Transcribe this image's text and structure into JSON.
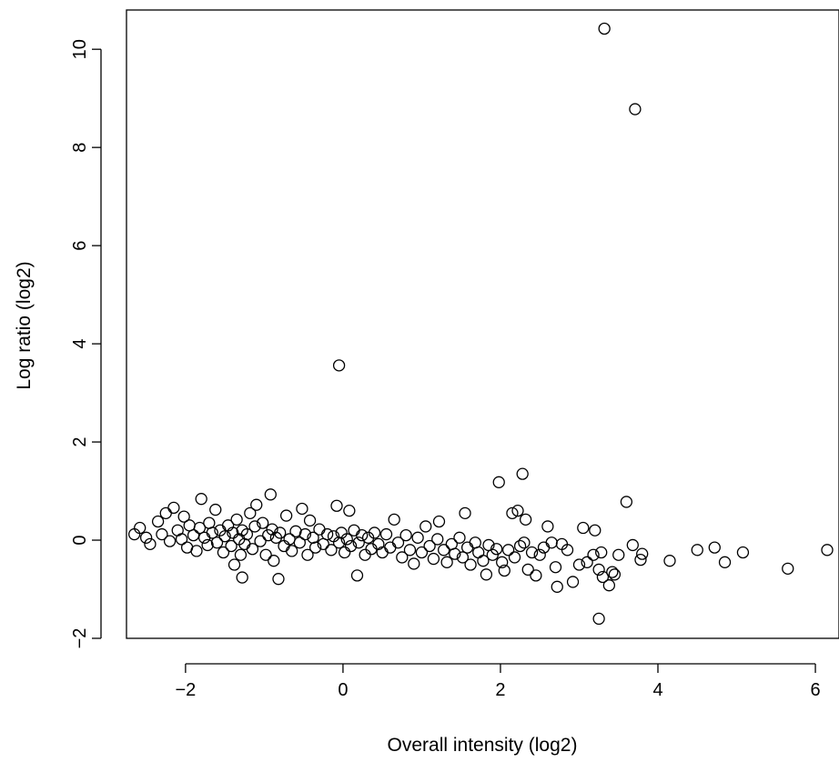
{
  "chart_data": {
    "type": "scatter",
    "title": "",
    "xlabel": "Overall intensity (log2)",
    "ylabel": "Log ratio (log2)",
    "xlim": [
      -2.75,
      6.3
    ],
    "ylim": [
      -2.0,
      10.8
    ],
    "x_ticks": [
      -2,
      0,
      2,
      4,
      6
    ],
    "y_ticks": [
      -2,
      0,
      2,
      4,
      6,
      8,
      10
    ],
    "x_tick_labels": [
      "−2",
      "0",
      "2",
      "4",
      "6"
    ],
    "y_tick_labels": [
      "−2",
      "0",
      "2",
      "4",
      "6",
      "8",
      "10"
    ],
    "grid": false,
    "marker": "open-circle",
    "marker_color": "#000000",
    "series": [
      {
        "points": [
          [
            3.32,
            10.42
          ],
          [
            3.71,
            8.78
          ],
          [
            -0.05,
            3.56
          ],
          [
            -2.65,
            0.12
          ],
          [
            -2.58,
            0.25
          ],
          [
            -2.5,
            0.05
          ],
          [
            -2.45,
            -0.08
          ],
          [
            -2.35,
            0.38
          ],
          [
            -2.3,
            0.12
          ],
          [
            -2.25,
            0.55
          ],
          [
            -2.2,
            -0.02
          ],
          [
            -2.15,
            0.66
          ],
          [
            -2.1,
            0.2
          ],
          [
            -2.05,
            0.02
          ],
          [
            -2.02,
            0.48
          ],
          [
            -1.98,
            -0.15
          ],
          [
            -1.95,
            0.3
          ],
          [
            -1.9,
            0.1
          ],
          [
            -1.86,
            -0.22
          ],
          [
            -1.82,
            0.25
          ],
          [
            -1.8,
            0.84
          ],
          [
            -1.76,
            0.05
          ],
          [
            -1.72,
            -0.1
          ],
          [
            -1.7,
            0.35
          ],
          [
            -1.66,
            0.15
          ],
          [
            -1.62,
            0.62
          ],
          [
            -1.6,
            -0.05
          ],
          [
            -1.56,
            0.2
          ],
          [
            -1.52,
            -0.25
          ],
          [
            -1.5,
            0.08
          ],
          [
            -1.46,
            0.3
          ],
          [
            -1.42,
            -0.12
          ],
          [
            -1.4,
            0.15
          ],
          [
            -1.38,
            -0.5
          ],
          [
            -1.35,
            0.42
          ],
          [
            -1.32,
            0.02
          ],
          [
            -1.3,
            -0.3
          ],
          [
            -1.28,
            0.2
          ],
          [
            -1.25,
            -0.08
          ],
          [
            -1.28,
            -0.76
          ],
          [
            -1.22,
            0.12
          ],
          [
            -1.18,
            0.55
          ],
          [
            -1.15,
            -0.18
          ],
          [
            -1.12,
            0.28
          ],
          [
            -1.1,
            0.72
          ],
          [
            -1.05,
            -0.02
          ],
          [
            -1.02,
            0.35
          ],
          [
            -0.98,
            -0.3
          ],
          [
            -0.95,
            0.1
          ],
          [
            -0.92,
            0.93
          ],
          [
            -0.9,
            0.22
          ],
          [
            -0.88,
            -0.42
          ],
          [
            -0.85,
            0.05
          ],
          [
            -0.82,
            -0.79
          ],
          [
            -0.8,
            0.15
          ],
          [
            -0.75,
            -0.12
          ],
          [
            -0.72,
            0.5
          ],
          [
            -0.68,
            0.02
          ],
          [
            -0.65,
            -0.22
          ],
          [
            -0.6,
            0.18
          ],
          [
            -0.55,
            -0.05
          ],
          [
            -0.52,
            0.64
          ],
          [
            -0.48,
            0.12
          ],
          [
            -0.45,
            -0.3
          ],
          [
            -0.42,
            0.4
          ],
          [
            -0.38,
            0.05
          ],
          [
            -0.35,
            -0.15
          ],
          [
            -0.3,
            0.22
          ],
          [
            -0.25,
            -0.08
          ],
          [
            -0.2,
            0.12
          ],
          [
            -0.15,
            -0.2
          ],
          [
            -0.12,
            0.08
          ],
          [
            -0.08,
            0.7
          ],
          [
            -0.05,
            -0.05
          ],
          [
            -0.02,
            0.15
          ],
          [
            0.02,
            -0.25
          ],
          [
            0.05,
            0.02
          ],
          [
            0.08,
            0.6
          ],
          [
            0.1,
            -0.12
          ],
          [
            0.14,
            0.2
          ],
          [
            0.18,
            -0.72
          ],
          [
            0.2,
            -0.05
          ],
          [
            0.24,
            0.1
          ],
          [
            0.28,
            -0.3
          ],
          [
            0.32,
            0.05
          ],
          [
            0.36,
            -0.18
          ],
          [
            0.4,
            0.15
          ],
          [
            0.45,
            -0.08
          ],
          [
            0.5,
            -0.25
          ],
          [
            0.55,
            0.12
          ],
          [
            0.6,
            -0.15
          ],
          [
            0.65,
            0.42
          ],
          [
            0.7,
            -0.05
          ],
          [
            0.75,
            -0.35
          ],
          [
            0.8,
            0.1
          ],
          [
            0.85,
            -0.2
          ],
          [
            0.9,
            -0.48
          ],
          [
            0.95,
            0.05
          ],
          [
            1.0,
            -0.25
          ],
          [
            1.05,
            0.28
          ],
          [
            1.1,
            -0.12
          ],
          [
            1.15,
            -0.38
          ],
          [
            1.2,
            0.02
          ],
          [
            1.22,
            0.38
          ],
          [
            1.28,
            -0.2
          ],
          [
            1.32,
            -0.45
          ],
          [
            1.38,
            -0.08
          ],
          [
            1.42,
            -0.28
          ],
          [
            1.48,
            0.05
          ],
          [
            1.52,
            -0.35
          ],
          [
            1.55,
            0.55
          ],
          [
            1.58,
            -0.15
          ],
          [
            1.62,
            -0.5
          ],
          [
            1.68,
            -0.05
          ],
          [
            1.72,
            -0.25
          ],
          [
            1.78,
            -0.42
          ],
          [
            1.82,
            -0.7
          ],
          [
            1.85,
            -0.1
          ],
          [
            1.9,
            -0.3
          ],
          [
            1.95,
            -0.18
          ],
          [
            1.98,
            1.18
          ],
          [
            2.02,
            -0.45
          ],
          [
            2.05,
            -0.62
          ],
          [
            2.1,
            -0.2
          ],
          [
            2.15,
            0.55
          ],
          [
            2.18,
            -0.35
          ],
          [
            2.22,
            0.6
          ],
          [
            2.25,
            -0.12
          ],
          [
            2.28,
            1.35
          ],
          [
            2.3,
            -0.05
          ],
          [
            2.32,
            0.42
          ],
          [
            2.35,
            -0.6
          ],
          [
            2.4,
            -0.25
          ],
          [
            2.45,
            -0.72
          ],
          [
            2.5,
            -0.3
          ],
          [
            2.55,
            -0.15
          ],
          [
            2.6,
            0.28
          ],
          [
            2.65,
            -0.05
          ],
          [
            2.7,
            -0.55
          ],
          [
            2.72,
            -0.95
          ],
          [
            2.78,
            -0.08
          ],
          [
            2.85,
            -0.2
          ],
          [
            2.92,
            -0.85
          ],
          [
            3.0,
            -0.5
          ],
          [
            3.05,
            0.25
          ],
          [
            3.1,
            -0.45
          ],
          [
            3.18,
            -0.3
          ],
          [
            3.2,
            0.2
          ],
          [
            3.25,
            -0.6
          ],
          [
            3.28,
            -0.25
          ],
          [
            3.3,
            -0.75
          ],
          [
            3.25,
            -1.6
          ],
          [
            3.38,
            -0.92
          ],
          [
            3.42,
            -0.65
          ],
          [
            3.45,
            -0.7
          ],
          [
            3.5,
            -0.3
          ],
          [
            3.6,
            0.78
          ],
          [
            3.68,
            -0.1
          ],
          [
            3.78,
            -0.4
          ],
          [
            3.8,
            -0.28
          ],
          [
            4.15,
            -0.42
          ],
          [
            4.5,
            -0.2
          ],
          [
            4.72,
            -0.15
          ],
          [
            4.85,
            -0.45
          ],
          [
            5.08,
            -0.25
          ],
          [
            5.65,
            -0.58
          ],
          [
            6.15,
            -0.2
          ]
        ]
      }
    ]
  }
}
